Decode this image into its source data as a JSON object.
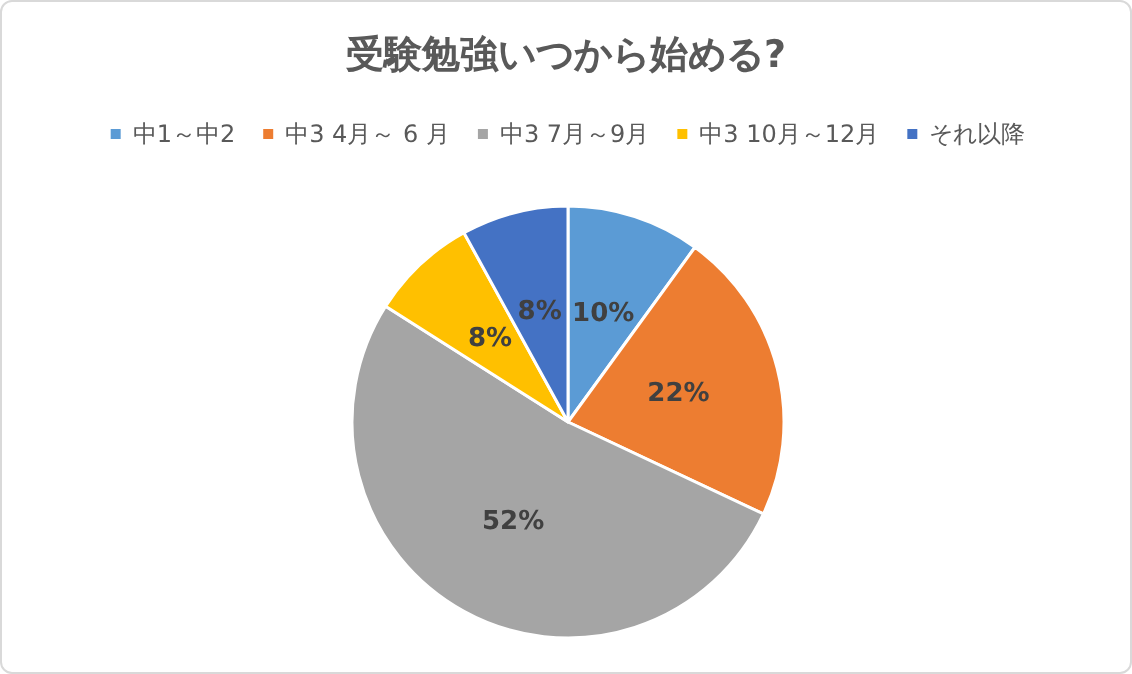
{
  "chart_data": {
    "type": "pie",
    "title": "受験勉強いつから始める?",
    "categories": [
      "中1～中2",
      "中3 4月～ 6 月",
      "中3 7月～9月",
      "中3 10月～12月",
      "それ以降"
    ],
    "values": [
      10,
      22,
      52,
      8,
      8
    ],
    "colors": [
      "#5b9bd5",
      "#ed7d31",
      "#a5a5a5",
      "#ffc000",
      "#4472c4"
    ],
    "value_labels": [
      "10%",
      "22%",
      "52%",
      "8%",
      "8%"
    ],
    "legend": "top"
  }
}
